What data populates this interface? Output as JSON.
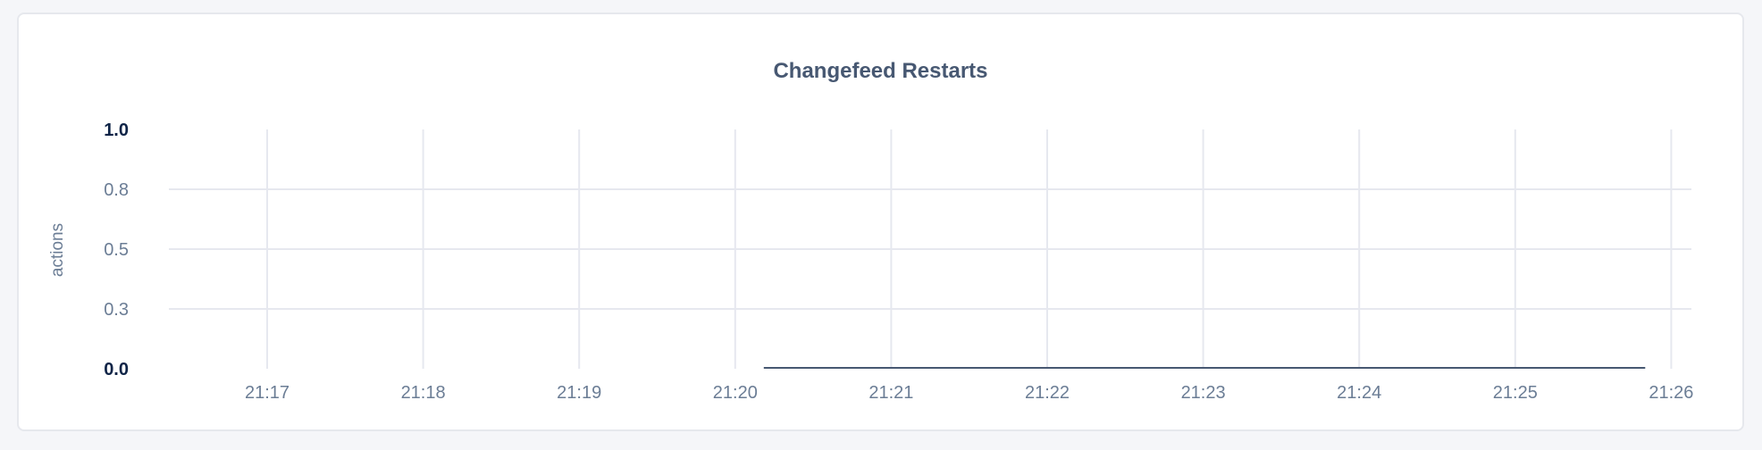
{
  "chart_data": {
    "type": "line",
    "title": "Changefeed Restarts",
    "ylabel": "actions",
    "xlabel": "",
    "ylim": [
      0,
      1
    ],
    "yticks": [
      {
        "value": 1.0,
        "label": "1.0"
      },
      {
        "value": 0.75,
        "label": "0.8"
      },
      {
        "value": 0.5,
        "label": "0.5"
      },
      {
        "value": 0.25,
        "label": "0.3"
      },
      {
        "value": 0.0,
        "label": "0.0"
      }
    ],
    "xlim": [
      "21:16:30",
      "21:26:08"
    ],
    "xticks": [
      "21:17",
      "21:18",
      "21:19",
      "21:20",
      "21:21",
      "21:22",
      "21:23",
      "21:24",
      "21:25",
      "21:26"
    ],
    "grid": true,
    "series": [
      {
        "color": "#475872",
        "x": [
          "21:20:11",
          "21:21:00",
          "21:22:00",
          "21:23:00",
          "21:24:00",
          "21:25:00",
          "21:25:50"
        ],
        "y": [
          0,
          0,
          0,
          0,
          0,
          0,
          0
        ]
      }
    ],
    "colors": {
      "grid": "#e6e8ef",
      "tick_label": "#6b7d95",
      "bold_tick": "#0f2447",
      "title": "#475872"
    }
  }
}
